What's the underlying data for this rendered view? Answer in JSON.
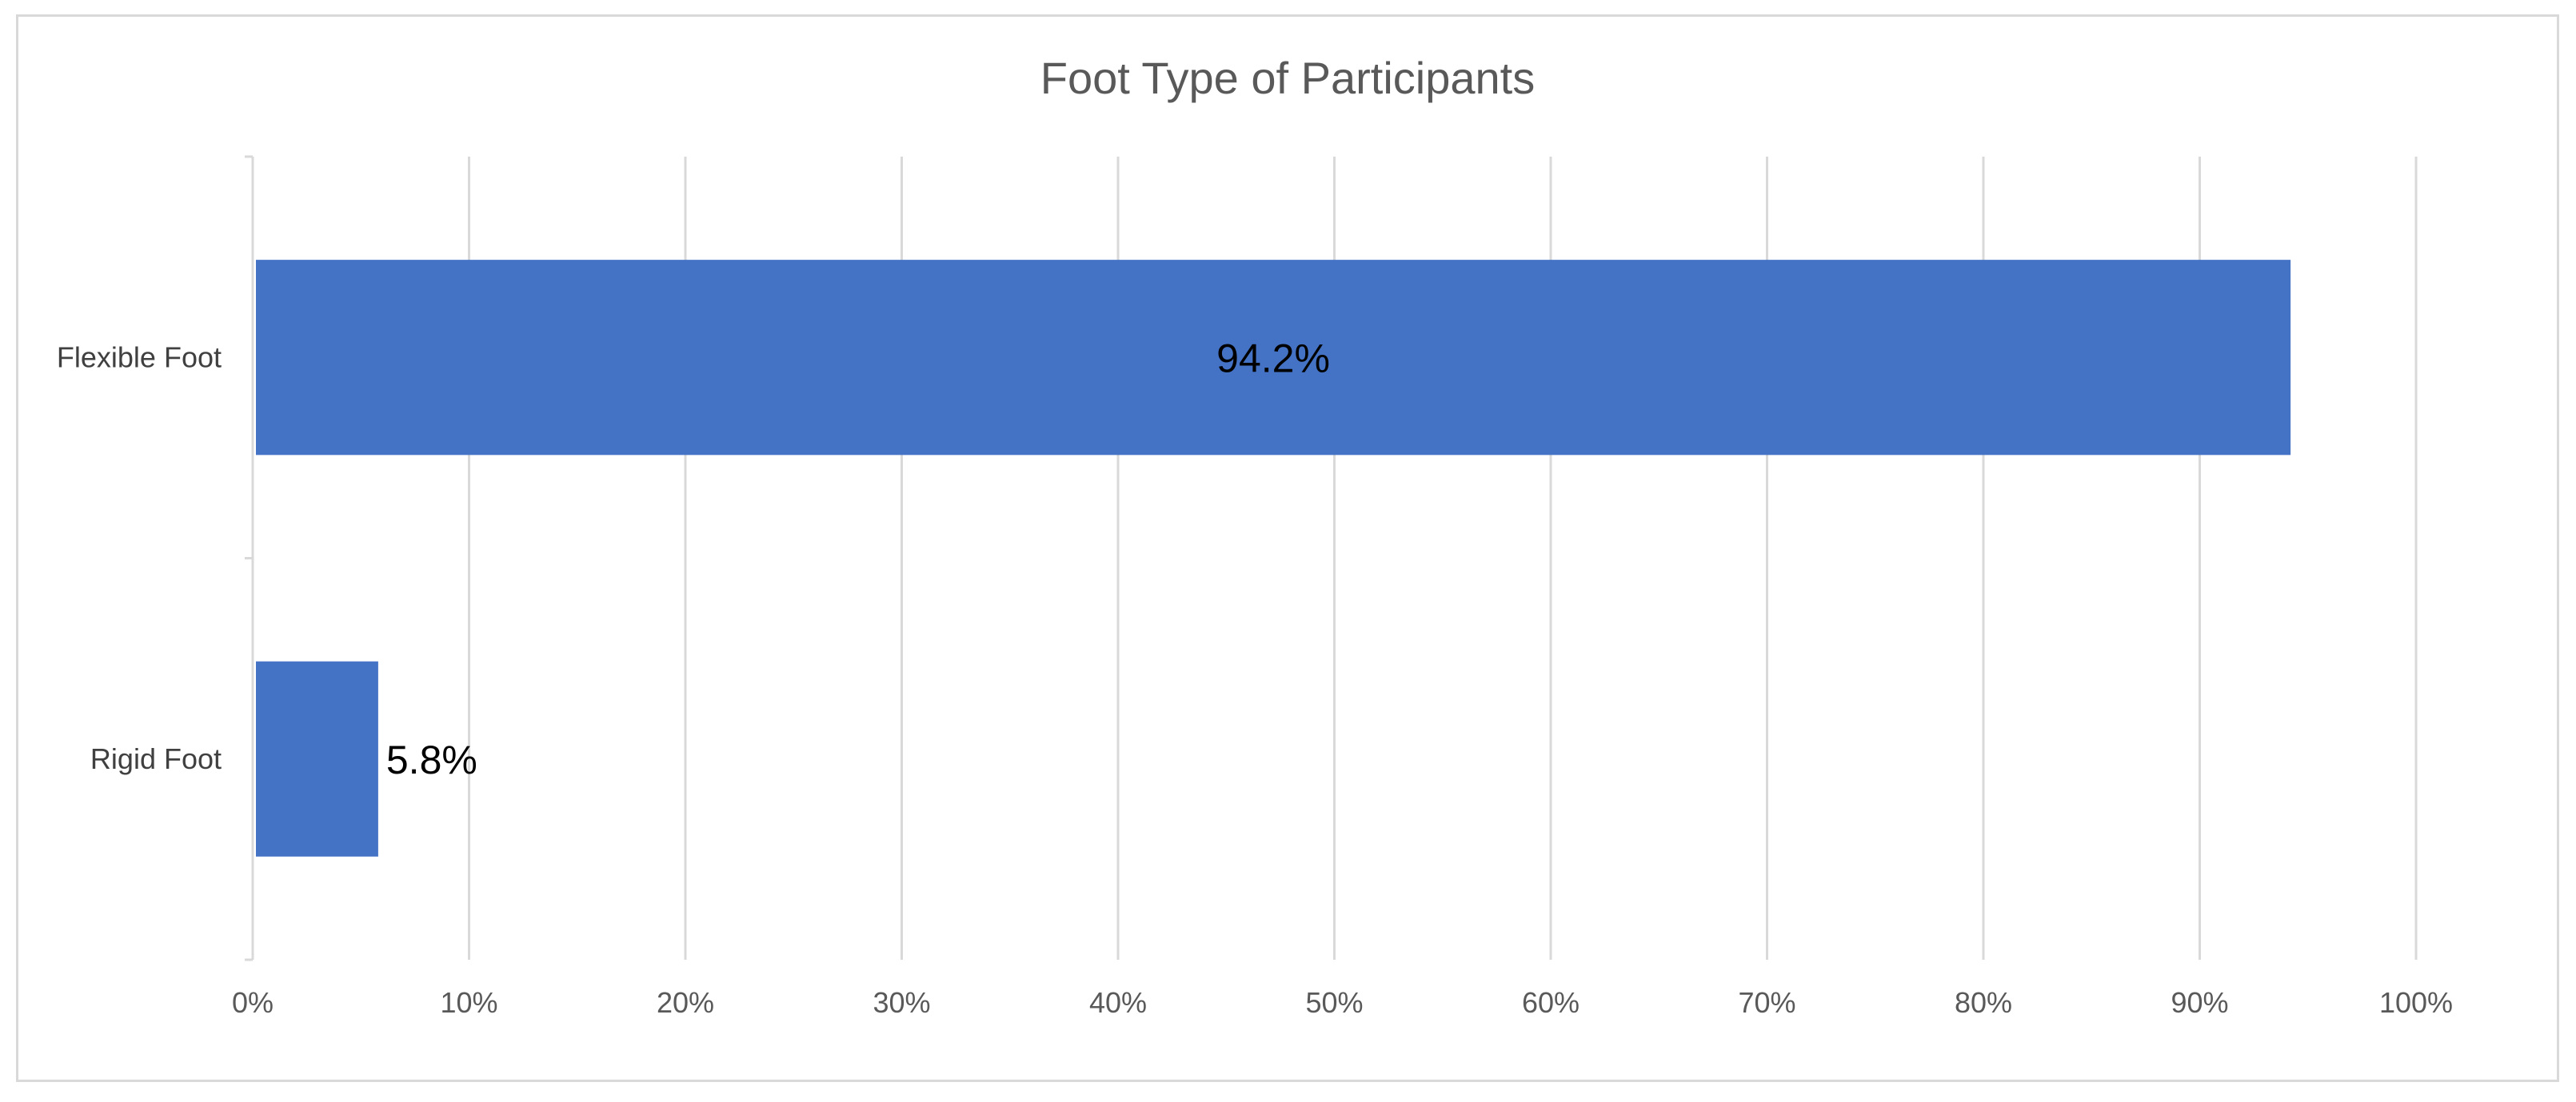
{
  "chart_data": {
    "type": "bar",
    "orientation": "horizontal",
    "title": "Foot Type of Participants",
    "categories": [
      "Flexible Foot",
      "Rigid Foot"
    ],
    "values": [
      94.2,
      5.8
    ],
    "data_labels": [
      "94.2%",
      "5.8%"
    ],
    "xlim": [
      0,
      100
    ],
    "x_ticks": [
      0,
      10,
      20,
      30,
      40,
      50,
      60,
      70,
      80,
      90,
      100
    ],
    "x_tick_labels": [
      "0%",
      "10%",
      "20%",
      "30%",
      "40%",
      "50%",
      "60%",
      "70%",
      "80%",
      "90%",
      "100%"
    ],
    "xlabel": "",
    "ylabel": "",
    "grid": "vertical",
    "legend": "none",
    "bar_color": "#4472C4",
    "grid_color": "#d9d9d9"
  }
}
